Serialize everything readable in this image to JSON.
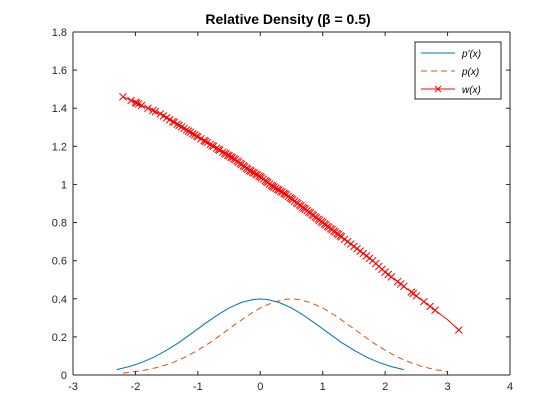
{
  "chart_data": {
    "type": "line",
    "title": "Relative Density (β = 0.5)",
    "xlabel": "",
    "ylabel": "",
    "xlim": [
      -3,
      4
    ],
    "ylim": [
      0,
      1.8
    ],
    "x_ticks": [
      -3,
      -2,
      -1,
      0,
      1,
      2,
      3,
      4
    ],
    "y_ticks": [
      0,
      0.2,
      0.4,
      0.6,
      0.8,
      1,
      1.2,
      1.4,
      1.6,
      1.8
    ],
    "x_tick_labels": [
      "-3",
      "-2",
      "-1",
      "0",
      "1",
      "2",
      "3",
      "4"
    ],
    "y_tick_labels": [
      "0",
      "0.2",
      "0.4",
      "0.6",
      "0.8",
      "1",
      "1.2",
      "1.4",
      "1.6",
      "1.8"
    ],
    "grid": false,
    "legend_position": "top-right",
    "legend": [
      "p'(x)",
      "p(x)",
      "w(x)"
    ],
    "series": [
      {
        "name": "p'(x)",
        "style": "solid",
        "color": "#0072BD",
        "x": [
          -2.3,
          -2.1,
          -1.9,
          -1.7,
          -1.5,
          -1.3,
          -1.1,
          -0.9,
          -0.7,
          -0.5,
          -0.3,
          -0.1,
          0,
          0.1,
          0.3,
          0.5,
          0.7,
          0.9,
          1.1,
          1.3,
          1.5,
          1.7,
          1.9,
          2.1,
          2.3
        ],
        "y": [
          0.028,
          0.044,
          0.066,
          0.094,
          0.13,
          0.171,
          0.218,
          0.266,
          0.312,
          0.352,
          0.381,
          0.397,
          0.399,
          0.397,
          0.381,
          0.352,
          0.312,
          0.266,
          0.218,
          0.171,
          0.13,
          0.094,
          0.066,
          0.044,
          0.028
        ]
      },
      {
        "name": "p(x)",
        "style": "dashed",
        "color": "#D95319",
        "x": [
          -2.2,
          -2.0,
          -1.8,
          -1.6,
          -1.4,
          -1.2,
          -1.0,
          -0.8,
          -0.6,
          -0.4,
          -0.2,
          0,
          0.2,
          0.4,
          0.5,
          0.6,
          0.8,
          1.0,
          1.2,
          1.4,
          1.6,
          1.8,
          2.0,
          2.2,
          2.4,
          2.6,
          2.8,
          3.0
        ],
        "y": [
          0.01,
          0.018,
          0.028,
          0.044,
          0.066,
          0.094,
          0.13,
          0.171,
          0.218,
          0.266,
          0.312,
          0.352,
          0.381,
          0.397,
          0.399,
          0.397,
          0.381,
          0.352,
          0.312,
          0.266,
          0.218,
          0.171,
          0.13,
          0.094,
          0.066,
          0.044,
          0.028,
          0.018
        ]
      },
      {
        "name": "w(x)",
        "style": "solid",
        "marker": "x",
        "color": "#FF0000",
        "x": [
          -2.2,
          -2.0,
          -1.8,
          -1.6,
          -1.4,
          -1.2,
          -1.0,
          -0.8,
          -0.6,
          -0.4,
          -0.2,
          0,
          0.2,
          0.4,
          0.6,
          0.8,
          1.0,
          1.2,
          1.4,
          1.6,
          1.8,
          2.0,
          2.2,
          2.4,
          2.6,
          2.8,
          3.0,
          3.2
        ],
        "y": [
          1.46,
          1.43,
          1.4,
          1.37,
          1.33,
          1.29,
          1.25,
          1.21,
          1.17,
          1.13,
          1.08,
          1.04,
          0.99,
          0.95,
          0.9,
          0.85,
          0.8,
          0.75,
          0.7,
          0.65,
          0.6,
          0.54,
          0.49,
          0.44,
          0.39,
          0.34,
          0.29,
          0.23
        ]
      }
    ],
    "w_markers_x": [
      -2.2,
      -2.07,
      -2.0,
      -1.98,
      -1.95,
      -1.9,
      -1.8,
      -1.72,
      -1.68,
      -1.6,
      -1.55,
      -1.5,
      -1.45,
      -1.4,
      -1.38,
      -1.33,
      -1.3,
      -1.26,
      -1.22,
      -1.18,
      -1.15,
      -1.12,
      -1.08,
      -1.05,
      -1.02,
      -1.0,
      -0.95,
      -0.9,
      -0.88,
      -0.85,
      -0.8,
      -0.77,
      -0.75,
      -0.7,
      -0.67,
      -0.65,
      -0.6,
      -0.57,
      -0.55,
      -0.52,
      -0.5,
      -0.47,
      -0.45,
      -0.42,
      -0.4,
      -0.37,
      -0.35,
      -0.32,
      -0.3,
      -0.27,
      -0.25,
      -0.22,
      -0.2,
      -0.17,
      -0.15,
      -0.12,
      -0.1,
      -0.07,
      -0.05,
      -0.02,
      0.0,
      0.02,
      0.05,
      0.08,
      0.1,
      0.12,
      0.15,
      0.18,
      0.2,
      0.22,
      0.25,
      0.28,
      0.3,
      0.33,
      0.35,
      0.38,
      0.4,
      0.42,
      0.45,
      0.48,
      0.5,
      0.52,
      0.55,
      0.58,
      0.6,
      0.63,
      0.65,
      0.68,
      0.7,
      0.72,
      0.75,
      0.78,
      0.8,
      0.83,
      0.85,
      0.88,
      0.9,
      0.93,
      0.95,
      0.98,
      1.0,
      1.03,
      1.05,
      1.08,
      1.1,
      1.13,
      1.15,
      1.18,
      1.2,
      1.23,
      1.25,
      1.28,
      1.3,
      1.35,
      1.4,
      1.45,
      1.5,
      1.55,
      1.6,
      1.65,
      1.7,
      1.75,
      1.8,
      1.85,
      1.9,
      1.95,
      2.0,
      2.05,
      2.1,
      2.2,
      2.25,
      2.3,
      2.42,
      2.45,
      2.5,
      2.62,
      2.72,
      2.8,
      3.18
    ]
  }
}
